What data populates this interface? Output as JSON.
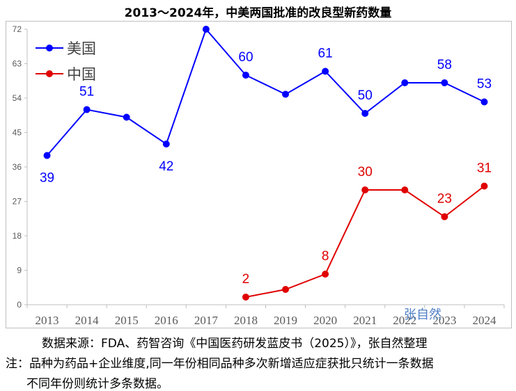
{
  "chart_data": {
    "type": "line",
    "title": "2013～2024年，中美两国批准的改良型新药数量",
    "categories": [
      "2013",
      "2014",
      "2015",
      "2016",
      "2017",
      "2018",
      "2019",
      "2020",
      "2021",
      "2022",
      "2023",
      "2024"
    ],
    "ylim": [
      0,
      72
    ],
    "yticks": [
      0,
      9,
      18,
      27,
      36,
      45,
      54,
      63,
      72
    ],
    "grid": false,
    "legend": "top-left",
    "series": [
      {
        "name": "美国",
        "color": "#0000ff",
        "values": [
          39,
          51,
          49,
          42,
          72,
          60,
          55,
          61,
          50,
          58,
          58,
          53
        ],
        "labels": [
          "39",
          "51",
          null,
          "42",
          "72",
          "60",
          null,
          "61",
          "50",
          null,
          "58",
          "53"
        ]
      },
      {
        "name": "中国",
        "color": "#e00000",
        "values": [
          null,
          null,
          null,
          null,
          null,
          2,
          4,
          8,
          30,
          30,
          23,
          31
        ],
        "labels": [
          null,
          null,
          null,
          null,
          null,
          "2",
          null,
          "8",
          "30",
          null,
          "23",
          "31"
        ]
      }
    ]
  },
  "watermark": "张自然",
  "footer": {
    "source": "数据来源：FDA、药智咨询《中国医药研发蓝皮书（2025）》，张自然整理",
    "note_line1": "注：品种为药品+企业维度,同一年份相同品种多次新增适应症获批只统计一条数据",
    "note_line2": "不同年份则统计多条数据。"
  }
}
